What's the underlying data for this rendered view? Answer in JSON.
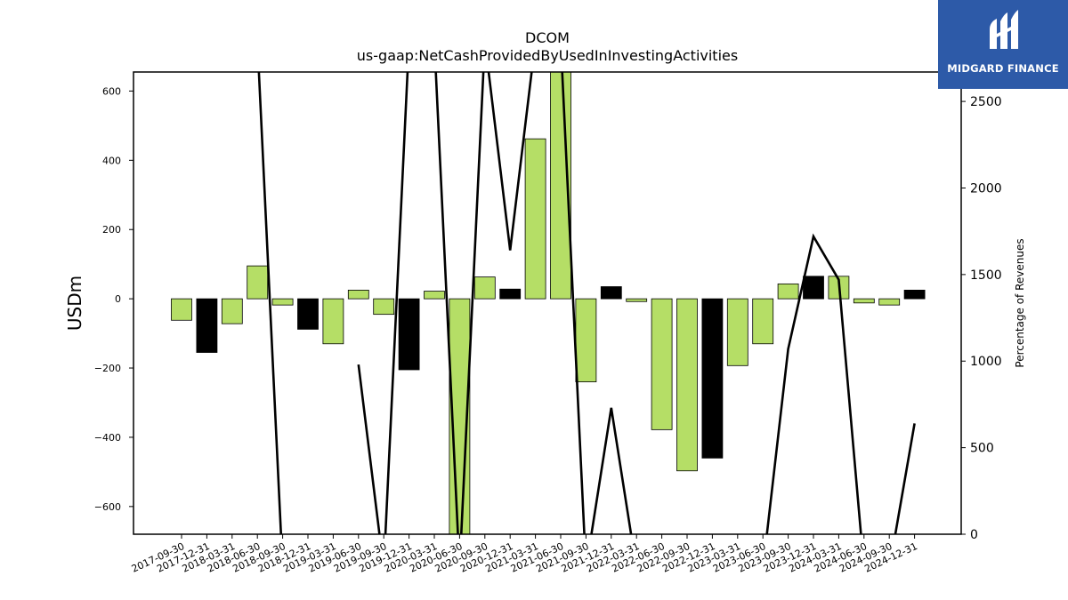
{
  "brand": {
    "name": "MIDGARD FINANCE",
    "bg_color": "#2d5aa8"
  },
  "chart_data": {
    "type": "bar",
    "title": "DCOM",
    "subtitle": "us-gaap:NetCashProvidedByUsedInInvestingActivities",
    "ylabel": "USDm",
    "y2label": "Percentage of Revenues",
    "ylim": [
      -680,
      655
    ],
    "y2lim": [
      0,
      2670
    ],
    "yticks": [
      -600,
      -400,
      -200,
      0,
      200,
      400,
      600
    ],
    "y2ticks": [
      0,
      500,
      1000,
      1500,
      2000,
      2500
    ],
    "grid": false,
    "bar_color": "#b5de66",
    "q4_bar_color": "#000000",
    "line_color": "#000000",
    "categories": [
      "2017-09-30",
      "2017-12-31",
      "2018-03-31",
      "2018-06-30",
      "2018-09-30",
      "2018-12-31",
      "2019-03-31",
      "2019-06-30",
      "2019-09-30",
      "2019-12-31",
      "2020-03-31",
      "2020-06-30",
      "2020-09-30",
      "2020-12-31",
      "2021-03-31",
      "2021-06-30",
      "2021-09-30",
      "2021-12-31",
      "2022-03-31",
      "2022-06-30",
      "2022-09-30",
      "2022-12-31",
      "2023-03-31",
      "2023-06-30",
      "2023-09-30",
      "2023-12-31",
      "2024-03-31",
      "2024-06-30",
      "2024-09-30",
      "2024-12-31"
    ],
    "series": [
      {
        "values": [
          -62,
          -155,
          -72,
          95,
          -18,
          -88,
          -130,
          25,
          -45,
          -205,
          22,
          -700,
          63,
          28,
          462,
          700,
          -240,
          35,
          -8,
          -378,
          -497,
          -460,
          -193,
          -130,
          43,
          65,
          65,
          -12,
          -18,
          25
        ]
      },
      {
        "values": [
          null,
          null,
          2850,
          2850,
          -200,
          null,
          null,
          980,
          -200,
          2850,
          2850,
          -200,
          2850,
          1640,
          2850,
          2850,
          -200,
          730,
          -200,
          null,
          null,
          null,
          null,
          -200,
          1070,
          1720,
          1470,
          -200,
          -200,
          640
        ]
      }
    ]
  }
}
